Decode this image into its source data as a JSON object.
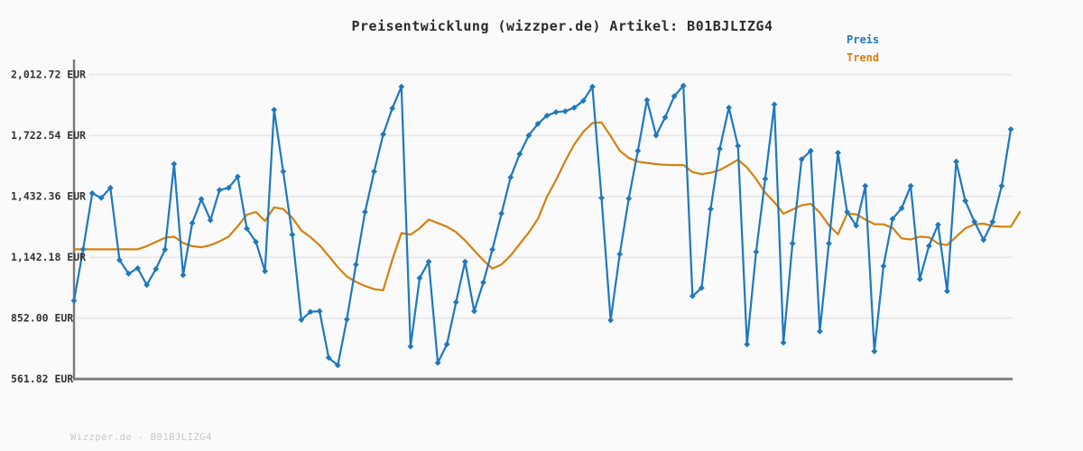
{
  "header": {
    "title": "Preisentwicklung (wizzper.de) Artikel: B01BJLIZG4"
  },
  "legend": {
    "items": [
      {
        "label": "Preis",
        "color": "#1e78be"
      },
      {
        "label": "Trend",
        "color": "#d4810e"
      }
    ]
  },
  "watermark": "Wizzper.de - B01BJLIZG4",
  "colors": {
    "background": "#fafafa",
    "gridline": "#e9e9e9",
    "spine": "#7a7a7a",
    "tick_label": "#333333",
    "preis": "#1e78be",
    "trend": "#d4810e"
  },
  "chart_data": {
    "type": "line",
    "title": "Preisentwicklung (wizzper.de) Artikel: B01BJLIZG4",
    "xlabel": "",
    "ylabel": "EUR",
    "ylim": [
      561.82,
      2012.72
    ],
    "grid": true,
    "legend_position": "top-right",
    "ytick_values": [
      2012.72,
      1722.54,
      1432.36,
      1142.18,
      852.0,
      561.82
    ],
    "ytick_labels": [
      "2,012.72 EUR",
      "1,722.54 EUR",
      "1,432.36 EUR",
      "1,142.18 EUR",
      "852.00 EUR",
      "561.82 EUR"
    ],
    "series": [
      {
        "name": "Trend",
        "color": "#d4810e",
        "markers": false,
        "values": [
          1180,
          1180,
          1180,
          1180,
          1180,
          1180,
          1180,
          1180,
          1195,
          1215,
          1235,
          1240,
          1210,
          1195,
          1190,
          1200,
          1218,
          1240,
          1290,
          1345,
          1358,
          1315,
          1380,
          1372,
          1330,
          1270,
          1238,
          1200,
          1148,
          1095,
          1050,
          1025,
          1005,
          990,
          985,
          1130,
          1258,
          1250,
          1280,
          1322,
          1305,
          1288,
          1262,
          1222,
          1175,
          1128,
          1088,
          1108,
          1150,
          1205,
          1260,
          1325,
          1430,
          1510,
          1600,
          1680,
          1740,
          1782,
          1785,
          1720,
          1650,
          1615,
          1598,
          1592,
          1586,
          1583,
          1581,
          1582,
          1548,
          1538,
          1545,
          1558,
          1582,
          1607,
          1570,
          1515,
          1450,
          1405,
          1350,
          1370,
          1390,
          1397,
          1355,
          1295,
          1252,
          1350,
          1347,
          1322,
          1300,
          1299,
          1282,
          1232,
          1227,
          1240,
          1237,
          1208,
          1200,
          1240,
          1280,
          1299,
          1302,
          1291,
          1288,
          1288,
          1358
        ]
      },
      {
        "name": "Preis",
        "color": "#1e78be",
        "markers": true,
        "values": [
          935,
          1180,
          1447,
          1425,
          1473,
          1129,
          1064,
          1090,
          1010,
          1086,
          1179,
          1587,
          1057,
          1305,
          1419,
          1319,
          1462,
          1473,
          1526,
          1279,
          1215,
          1076,
          1845,
          1551,
          1250,
          844,
          882,
          885,
          663,
          627,
          846,
          1107,
          1358,
          1551,
          1728,
          1852,
          1955,
          717,
          1043,
          1121,
          639,
          727,
          928,
          1121,
          885,
          1022,
          1179,
          1351,
          1523,
          1634,
          1723,
          1778,
          1817,
          1834,
          1838,
          1855,
          1888,
          1955,
          1425,
          842,
          1157,
          1422,
          1649,
          1891,
          1723,
          1809,
          1910,
          1960,
          957,
          996,
          1372,
          1659,
          1855,
          1673,
          727,
          1168,
          1516,
          1870,
          735,
          1208,
          1609,
          1649,
          789,
          1208,
          1640,
          1358,
          1293,
          1482,
          694,
          1100,
          1325,
          1376,
          1482,
          1038,
          1196,
          1297,
          981,
          1598,
          1411,
          1311,
          1225,
          1311,
          1482,
          1752
        ]
      }
    ]
  }
}
